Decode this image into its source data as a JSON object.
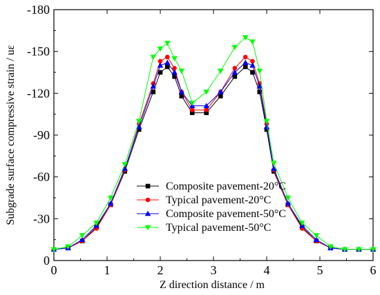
{
  "chart_data": {
    "type": "line",
    "xlabel": "Z direction distance / m",
    "ylabel": "Subgrade surface compressive strain / uε",
    "xlim": [
      0,
      6
    ],
    "ylim": [
      0,
      -180
    ],
    "y_inverted": true,
    "x_ticks": [
      0,
      1,
      2,
      3,
      4,
      5,
      6
    ],
    "x_tick_labels": [
      "0",
      "1",
      "2",
      "3",
      "4",
      "5",
      "6"
    ],
    "y_ticks": [
      0,
      -30,
      -60,
      -90,
      -120,
      -150,
      -180
    ],
    "y_tick_labels": [
      "0",
      "-30",
      "-60",
      "-90",
      "-120",
      "-150",
      "-180"
    ],
    "grid": false,
    "legend_position": "bottom-right",
    "x": [
      0,
      0.267,
      0.533,
      0.8,
      1.067,
      1.333,
      1.6,
      1.867,
      2.0,
      2.133,
      2.267,
      2.4,
      2.6,
      2.867,
      3.133,
      3.4,
      3.6,
      3.733,
      3.867,
      4.0,
      4.133,
      4.4,
      4.667,
      4.933,
      5.2,
      5.467,
      5.733,
      6.0
    ],
    "series": [
      {
        "name": "Composite pavement-20°C",
        "color": "#000000",
        "marker": "square",
        "values": [
          -8,
          -9,
          -14,
          -24,
          -40,
          -64,
          -94,
          -121,
          -135,
          -139,
          -132,
          -118,
          -106,
          -106,
          -118,
          -132,
          -139,
          -135,
          -121,
          -94,
          -64,
          -40,
          -24,
          -14,
          -9,
          -8,
          -8,
          -8
        ]
      },
      {
        "name": "Typical pavement-20°C",
        "color": "#ff0000",
        "marker": "circle",
        "values": [
          -8,
          -9,
          -14,
          -23,
          -40,
          -65,
          -98,
          -127,
          -143,
          -146,
          -138,
          -121,
          -108,
          -108,
          -121,
          -138,
          -146,
          -143,
          -127,
          -98,
          -65,
          -40,
          -23,
          -14,
          -9,
          -8,
          -8,
          -8
        ]
      },
      {
        "name": "Composite pavement-50°C",
        "color": "#0000ff",
        "marker": "triangle-up",
        "values": [
          -8,
          -9,
          -15,
          -25,
          -41,
          -66,
          -96,
          -125,
          -140,
          -142,
          -135,
          -121,
          -111,
          -111,
          -121,
          -135,
          -142,
          -140,
          -125,
          -96,
          -66,
          -41,
          -25,
          -15,
          -9,
          -8,
          -8,
          -8
        ]
      },
      {
        "name": "Typical pavement-50°C",
        "color": "#00ff00",
        "marker": "triangle-down",
        "values": [
          -8,
          -10,
          -18,
          -27,
          -45,
          -69,
          -100,
          -146,
          -152,
          -156,
          -145,
          -136,
          -113,
          -121,
          -136,
          -153,
          -160,
          -157,
          -136,
          -100,
          -70,
          -45,
          -27,
          -18,
          -10,
          -8,
          -8,
          -8
        ]
      }
    ]
  }
}
